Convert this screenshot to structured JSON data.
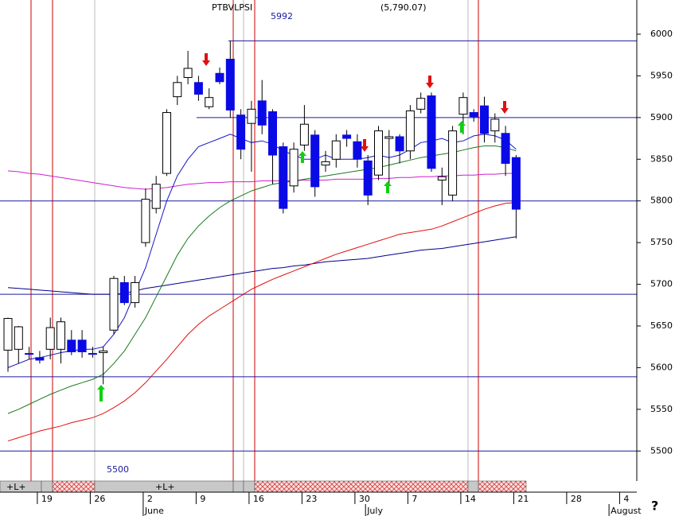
{
  "chart_data": {
    "type": "candlestick",
    "title": "PTBVLPSI",
    "last_price": "(5,790.07)",
    "categories": [
      null,
      null,
      null,
      "19",
      null,
      null,
      null,
      null,
      "26",
      null,
      null,
      null,
      null,
      "2",
      null,
      null,
      null,
      null,
      "9",
      null,
      null,
      null,
      null,
      "16",
      null,
      null,
      null,
      null,
      "23",
      null,
      null,
      null,
      null,
      "30",
      null,
      null,
      null,
      null,
      "7",
      null,
      null,
      null,
      null,
      "14",
      null,
      null,
      null,
      null,
      "21",
      null,
      null,
      null,
      null,
      "28",
      null,
      null,
      null,
      null,
      "4"
    ],
    "months": [
      null,
      null,
      null,
      null,
      null,
      null,
      null,
      null,
      null,
      null,
      null,
      null,
      null,
      "June",
      null,
      null,
      null,
      null,
      null,
      null,
      null,
      null,
      null,
      null,
      null,
      null,
      null,
      null,
      null,
      null,
      null,
      null,
      null,
      null,
      "July",
      null,
      null,
      null,
      null,
      null,
      null,
      null,
      null,
      null,
      null,
      null,
      null,
      null,
      null,
      null,
      null,
      null,
      null,
      null,
      null,
      null,
      null,
      "August",
      null
    ],
    "open": [
      5621,
      5622,
      5617,
      5612,
      5622,
      5622,
      5633,
      5633,
      5617,
      5618,
      5645,
      5702,
      5678,
      5750,
      5791,
      5833,
      5925,
      5948,
      5942,
      5913,
      5953,
      5970,
      5903,
      5893,
      5920,
      5907,
      5865,
      5818,
      5867,
      5879,
      5843,
      5850,
      5879,
      5871,
      5848,
      5831,
      5875,
      5877,
      5860,
      5910,
      5926,
      5825,
      5807,
      5904,
      5906,
      5914,
      5884,
      5881,
      5852,
      null,
      null,
      null,
      null,
      null,
      null,
      null,
      null,
      null,
      null
    ],
    "high": [
      5660,
      5650,
      5625,
      5620,
      5660,
      5660,
      5645,
      5645,
      5625,
      5625,
      5710,
      5710,
      5710,
      5815,
      5830,
      5910,
      5950,
      5980,
      5950,
      5935,
      5960,
      5992,
      5910,
      5920,
      5945,
      5910,
      5870,
      5870,
      5915,
      5885,
      5860,
      5880,
      5885,
      5880,
      5855,
      5890,
      5885,
      5880,
      5915,
      5930,
      5930,
      5840,
      5890,
      5930,
      5910,
      5925,
      5905,
      5890,
      5855,
      null,
      null,
      null,
      null,
      null,
      null,
      null,
      null,
      null,
      null
    ],
    "low": [
      5595,
      5605,
      5610,
      5605,
      5610,
      5605,
      5615,
      5612,
      5612,
      5580,
      5640,
      5675,
      5672,
      5745,
      5785,
      5830,
      5915,
      5940,
      5920,
      5910,
      5940,
      5900,
      5850,
      5835,
      5880,
      5820,
      5785,
      5810,
      5860,
      5805,
      5835,
      5840,
      5865,
      5840,
      5795,
      5825,
      5820,
      5845,
      5850,
      5905,
      5835,
      5795,
      5800,
      5880,
      5895,
      5870,
      5870,
      5830,
      5755,
      null,
      null,
      null,
      null,
      null,
      null,
      null,
      null,
      null,
      null
    ],
    "close": [
      5659,
      5649,
      5616,
      5609,
      5648,
      5655,
      5619,
      5619,
      5616,
      5620,
      5707,
      5678,
      5702,
      5802,
      5820,
      5906,
      5942,
      5959,
      5928,
      5924,
      5943,
      5909,
      5862,
      5910,
      5891,
      5855,
      5791,
      5862,
      5892,
      5817,
      5847,
      5872,
      5875,
      5850,
      5807,
      5884,
      5877,
      5860,
      5908,
      5923,
      5839,
      5829,
      5884,
      5924,
      5901,
      5881,
      5898,
      5845,
      5790.07,
      null,
      null,
      null,
      null,
      null,
      null,
      null,
      null,
      null,
      null
    ],
    "up_color": "#ffffff",
    "down_color": "#0a0ae6",
    "wick_color": "#000000",
    "lines": [
      {
        "color": "#00008b",
        "values": [
          5696,
          5695,
          5694,
          5693,
          5692,
          5691,
          5690,
          5689,
          5688,
          5688,
          5688,
          5689,
          5692,
          5695,
          5697,
          5699,
          5701,
          5703,
          5705,
          5707,
          5709,
          5711,
          5713,
          5715,
          5717,
          5719,
          5720,
          5722,
          5723,
          5725,
          5727,
          5728,
          5729,
          5730,
          5731,
          5733,
          5735,
          5737,
          5739,
          5741,
          5742,
          5743,
          5745,
          5747,
          5749,
          5751,
          5753,
          5755,
          5757,
          null,
          null,
          null,
          null,
          null,
          null,
          null,
          null,
          null,
          null
        ]
      },
      {
        "color": "#e01010",
        "values": [
          5512,
          5516,
          5520,
          5524,
          5527,
          5530,
          5534,
          5537,
          5540,
          5545,
          5552,
          5560,
          5570,
          5582,
          5596,
          5610,
          5625,
          5640,
          5652,
          5662,
          5670,
          5678,
          5686,
          5694,
          5700,
          5706,
          5711,
          5716,
          5721,
          5726,
          5731,
          5736,
          5740,
          5744,
          5748,
          5752,
          5756,
          5760,
          5762,
          5764,
          5766,
          5770,
          5775,
          5780,
          5785,
          5790,
          5794,
          5797,
          5798,
          null,
          null,
          null,
          null,
          null,
          null,
          null,
          null,
          null,
          null
        ]
      },
      {
        "color": "#d020d0",
        "values": [
          5836,
          5835,
          5833,
          5832,
          5830,
          5828,
          5826,
          5824,
          5822,
          5820,
          5818,
          5816,
          5815,
          5814,
          5815,
          5816,
          5818,
          5820,
          5821,
          5822,
          5822,
          5823,
          5823,
          5823,
          5824,
          5824,
          5824,
          5824,
          5825,
          5825,
          5825,
          5826,
          5826,
          5826,
          5826,
          5827,
          5827,
          5828,
          5828,
          5829,
          5829,
          5830,
          5830,
          5831,
          5831,
          5832,
          5832,
          5833,
          5833,
          null,
          null,
          null,
          null,
          null,
          null,
          null,
          null,
          null,
          null
        ]
      },
      {
        "color": "#1a7a1a",
        "values": [
          5545,
          5550,
          5556,
          5562,
          5568,
          5573,
          5578,
          5582,
          5586,
          5592,
          5605,
          5620,
          5640,
          5660,
          5685,
          5710,
          5735,
          5755,
          5770,
          5782,
          5792,
          5800,
          5806,
          5812,
          5816,
          5820,
          5822,
          5824,
          5826,
          5828,
          5830,
          5832,
          5834,
          5836,
          5838,
          5840,
          5843,
          5846,
          5849,
          5852,
          5854,
          5856,
          5858,
          5861,
          5864,
          5866,
          5866,
          5864,
          5860,
          null,
          null,
          null,
          null,
          null,
          null,
          null,
          null,
          null,
          null
        ]
      },
      {
        "color": "#1515c8",
        "values": [
          5600,
          5605,
          5610,
          5612,
          5615,
          5618,
          5620,
          5622,
          5622,
          5625,
          5640,
          5660,
          5690,
          5720,
          5760,
          5800,
          5830,
          5850,
          5865,
          5870,
          5875,
          5880,
          5875,
          5870,
          5872,
          5868,
          5860,
          5855,
          5850,
          5850,
          5855,
          5850,
          5850,
          5850,
          5852,
          5855,
          5852,
          5855,
          5862,
          5870,
          5872,
          5875,
          5870,
          5872,
          5878,
          5880,
          5878,
          5873,
          5862,
          null,
          null,
          null,
          null,
          null,
          null,
          null,
          null,
          null,
          null
        ]
      }
    ],
    "hlines": [
      {
        "value": 5992,
        "label": "5992"
      },
      {
        "value": 5900
      },
      {
        "value": 5800
      },
      {
        "value": 5688
      },
      {
        "value": 5589
      },
      {
        "value": 5500,
        "label": "5500"
      }
    ],
    "hline_color": "#1a1aa0",
    "ylim": [
      5464,
      6041
    ],
    "yticks": [
      5500,
      5550,
      5600,
      5650,
      5700,
      5750,
      5800,
      5850,
      5900,
      5950,
      6000
    ],
    "strip_labels": [
      "+L+",
      "+L+"
    ],
    "help": "?"
  }
}
